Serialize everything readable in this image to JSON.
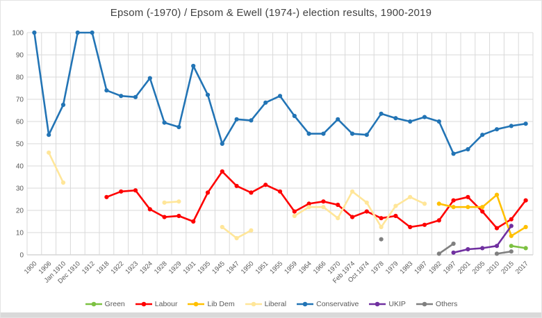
{
  "chart_data": {
    "type": "line",
    "title": "Epsom (-1970) / Epsom & Ewell (1974-) election results, 1900-2019",
    "xlabel": "",
    "ylabel": "",
    "ylim": [
      0,
      100
    ],
    "yticks": [
      0,
      10,
      20,
      30,
      40,
      50,
      60,
      70,
      80,
      90,
      100
    ],
    "grid": true,
    "legend_position": "bottom",
    "categories": [
      "1900",
      "1906",
      "Jan 1910",
      "Dec 1910",
      "1912",
      "1918",
      "1922",
      "1923",
      "1924",
      "1928",
      "1929",
      "1931",
      "1935",
      "1945",
      "1947",
      "1950",
      "1951",
      "1955",
      "1959",
      "1964",
      "1966",
      "1970",
      "Feb 1974",
      "Oct 1974",
      "1978",
      "1979",
      "1983",
      "1987",
      "1992",
      "1997",
      "2001",
      "2005",
      "2010",
      "2015",
      "2017"
    ],
    "series": [
      {
        "name": "Green",
        "color": "#7dc142",
        "values": [
          null,
          null,
          null,
          null,
          null,
          null,
          null,
          null,
          null,
          null,
          null,
          null,
          null,
          null,
          null,
          null,
          null,
          null,
          null,
          null,
          null,
          null,
          null,
          null,
          null,
          null,
          null,
          null,
          null,
          null,
          null,
          null,
          null,
          4,
          3
        ]
      },
      {
        "name": "Labour",
        "color": "#fe0000",
        "values": [
          null,
          null,
          null,
          null,
          null,
          26,
          28.5,
          29,
          20.5,
          17,
          17.5,
          15,
          28,
          37.5,
          31,
          28,
          31.5,
          28.5,
          19.5,
          23,
          24,
          22.5,
          17,
          19.5,
          16.5,
          17.5,
          12.5,
          13.5,
          15.5,
          24.5,
          26,
          19.5,
          12,
          16,
          24.5
        ]
      },
      {
        "name": "Lib Dem",
        "color": "#ffc000",
        "values": [
          null,
          null,
          null,
          null,
          null,
          null,
          null,
          null,
          null,
          null,
          null,
          null,
          null,
          null,
          null,
          null,
          null,
          null,
          null,
          null,
          null,
          null,
          null,
          null,
          null,
          null,
          null,
          null,
          23,
          21.5,
          21.5,
          21.5,
          27,
          8.5,
          12.5
        ]
      },
      {
        "name": "Liberal",
        "color": "#ffe699",
        "values": [
          null,
          46,
          32.5,
          null,
          null,
          null,
          null,
          null,
          null,
          23.5,
          24,
          null,
          null,
          12.5,
          7.5,
          11,
          null,
          null,
          17.5,
          21.5,
          21.5,
          16.5,
          28.5,
          23.5,
          12.5,
          22,
          26,
          23,
          null,
          null,
          null,
          null,
          null,
          null,
          null
        ]
      },
      {
        "name": "Conservative",
        "color": "#2274b5",
        "values": [
          100,
          54,
          67.5,
          100,
          100,
          74,
          71.5,
          71,
          79.5,
          59.5,
          57.5,
          85,
          72,
          50,
          61,
          60.5,
          68.5,
          71.5,
          62.5,
          54.5,
          54.5,
          61,
          54.5,
          54,
          63.5,
          61.5,
          60,
          62,
          60,
          45.5,
          47.5,
          54,
          56.5,
          58,
          59
        ]
      },
      {
        "name": "UKIP",
        "color": "#7030a0",
        "values": [
          null,
          null,
          null,
          null,
          null,
          null,
          null,
          null,
          null,
          null,
          null,
          null,
          null,
          null,
          null,
          null,
          null,
          null,
          null,
          null,
          null,
          null,
          null,
          null,
          null,
          null,
          null,
          null,
          null,
          1,
          2.5,
          3,
          4,
          13,
          null
        ]
      },
      {
        "name": "Others",
        "color": "#808080",
        "values": [
          null,
          null,
          null,
          null,
          null,
          null,
          null,
          null,
          null,
          null,
          null,
          null,
          null,
          null,
          null,
          null,
          null,
          null,
          null,
          null,
          null,
          null,
          null,
          null,
          7,
          null,
          null,
          null,
          0.5,
          5,
          null,
          null,
          0.5,
          1.5,
          null
        ]
      }
    ]
  }
}
